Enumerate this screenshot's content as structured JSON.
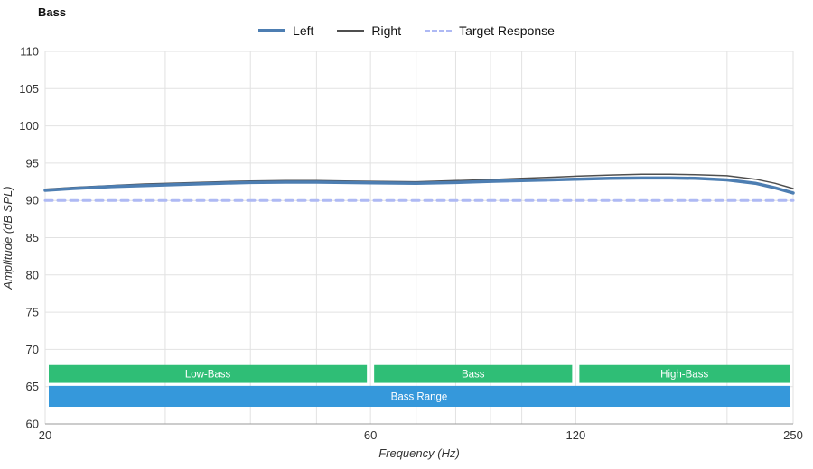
{
  "chart_data": {
    "type": "line",
    "title": "Bass",
    "xlabel": "Frequency (Hz)",
    "ylabel": "Amplitude (dB SPL)",
    "xscale": "log",
    "xlim": [
      20,
      250
    ],
    "ylim": [
      60,
      110
    ],
    "y_ticks": [
      60,
      65,
      70,
      75,
      80,
      85,
      90,
      95,
      100,
      105,
      110
    ],
    "x_gridlines": [
      20,
      30,
      40,
      50,
      60,
      70,
      80,
      90,
      100,
      120,
      200,
      250
    ],
    "x_tick_labels": [
      {
        "value": 20,
        "label": "20"
      },
      {
        "value": 60,
        "label": "60"
      },
      {
        "value": 120,
        "label": "120"
      },
      {
        "value": 250,
        "label": "250"
      }
    ],
    "grid_color": "#e2e2e2",
    "axis_color": "#999999",
    "legend": [
      {
        "label": "Left"
      },
      {
        "label": "Right"
      },
      {
        "label": "Target Response"
      }
    ],
    "series": [
      {
        "name": "Left",
        "color": "#4d7eb2",
        "width": 3.5,
        "dash": "",
        "points": [
          [
            20,
            91.35
          ],
          [
            22,
            91.6
          ],
          [
            25,
            91.85
          ],
          [
            28,
            92.0
          ],
          [
            32,
            92.15
          ],
          [
            36,
            92.3
          ],
          [
            40,
            92.4
          ],
          [
            45,
            92.45
          ],
          [
            50,
            92.45
          ],
          [
            55,
            92.4
          ],
          [
            60,
            92.35
          ],
          [
            70,
            92.3
          ],
          [
            80,
            92.4
          ],
          [
            90,
            92.55
          ],
          [
            100,
            92.65
          ],
          [
            110,
            92.75
          ],
          [
            120,
            92.85
          ],
          [
            135,
            92.95
          ],
          [
            150,
            93.0
          ],
          [
            165,
            93.0
          ],
          [
            180,
            92.95
          ],
          [
            200,
            92.75
          ],
          [
            220,
            92.3
          ],
          [
            235,
            91.7
          ],
          [
            250,
            91.0
          ]
        ]
      },
      {
        "name": "Right",
        "color": "#4f4f4f",
        "width": 1.5,
        "dash": "",
        "points": [
          [
            20,
            91.5
          ],
          [
            22,
            91.75
          ],
          [
            25,
            92.0
          ],
          [
            28,
            92.2
          ],
          [
            32,
            92.35
          ],
          [
            36,
            92.5
          ],
          [
            40,
            92.6
          ],
          [
            45,
            92.65
          ],
          [
            50,
            92.65
          ],
          [
            55,
            92.6
          ],
          [
            60,
            92.55
          ],
          [
            70,
            92.5
          ],
          [
            80,
            92.65
          ],
          [
            90,
            92.8
          ],
          [
            100,
            92.95
          ],
          [
            110,
            93.1
          ],
          [
            120,
            93.25
          ],
          [
            135,
            93.4
          ],
          [
            150,
            93.5
          ],
          [
            165,
            93.5
          ],
          [
            180,
            93.45
          ],
          [
            200,
            93.3
          ],
          [
            220,
            92.85
          ],
          [
            235,
            92.3
          ],
          [
            250,
            91.6
          ]
        ]
      },
      {
        "name": "Target Response",
        "color": "#aeb9f4",
        "width": 3,
        "dash": "8,6",
        "points": [
          [
            20,
            90
          ],
          [
            250,
            90
          ]
        ]
      }
    ],
    "bands": [
      {
        "label": "Low-Bass",
        "x1": 20,
        "x2": 60,
        "y1": 65.5,
        "y2": 67.9,
        "color": "#2fbe76"
      },
      {
        "label": "Bass",
        "x1": 60,
        "x2": 120,
        "y1": 65.5,
        "y2": 67.9,
        "color": "#2fbe76"
      },
      {
        "label": "High-Bass",
        "x1": 120,
        "x2": 250,
        "y1": 65.5,
        "y2": 67.9,
        "color": "#2fbe76"
      },
      {
        "label": "Bass Range",
        "x1": 20,
        "x2": 250,
        "y1": 62.3,
        "y2": 65.1,
        "color": "#3598db"
      }
    ]
  }
}
